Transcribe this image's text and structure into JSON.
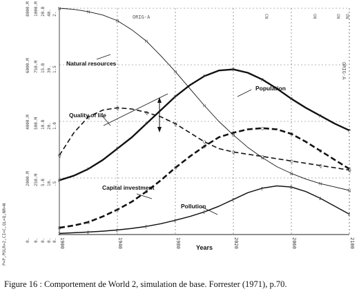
{
  "chart_data": {
    "type": "line",
    "title": "",
    "subtitle": "ORIG-A",
    "right_label": "ORIG-A",
    "top_right_marks": [
      "CN",
      "ON",
      "ON",
      "ON"
    ],
    "xlabel": "Years",
    "ylabel": "P=P,POLR=2,CI=C,QL=Q,NR=N",
    "x_ticks": [
      "1900",
      "1940",
      "1980",
      "2020",
      "2060",
      "2100"
    ],
    "xlim": [
      1900,
      2100
    ],
    "grid": true,
    "legend": "inline labels",
    "y_scale_columns": [
      [
        "8000.M",
        "6000.M",
        "4000.M",
        "2000.M",
        "0."
      ],
      [
        "1000.M",
        "750.M",
        "500.M",
        "250.M",
        "0."
      ],
      [
        "20.B",
        "15.B",
        "10.B",
        "5.B",
        "0."
      ],
      [
        "40.",
        "30.",
        "20.",
        "10.",
        "0."
      ],
      [
        "2.",
        "1.5",
        "1.0",
        ".5",
        "0."
      ]
    ],
    "series": [
      {
        "name": "Natural resources",
        "marker": "N",
        "style": "thin",
        "x": [
          1900,
          1910,
          1920,
          1930,
          1940,
          1950,
          1960,
          1970,
          1980,
          1990,
          2000,
          2010,
          2020,
          2030,
          2040,
          2050,
          2060,
          2070,
          2080,
          2090,
          2100
        ],
        "values": [
          1.0,
          0.995,
          0.985,
          0.97,
          0.945,
          0.905,
          0.855,
          0.79,
          0.72,
          0.645,
          0.57,
          0.5,
          0.44,
          0.385,
          0.34,
          0.3,
          0.27,
          0.245,
          0.225,
          0.21,
          0.195
        ]
      },
      {
        "name": "Population",
        "marker": "P",
        "style": "thick",
        "x": [
          1900,
          1910,
          1920,
          1930,
          1940,
          1950,
          1960,
          1970,
          1980,
          1990,
          2000,
          2010,
          2020,
          2030,
          2040,
          2050,
          2060,
          2070,
          2080,
          2090,
          2100
        ],
        "values": [
          0.24,
          0.26,
          0.29,
          0.33,
          0.38,
          0.43,
          0.49,
          0.55,
          0.61,
          0.66,
          0.7,
          0.725,
          0.73,
          0.715,
          0.685,
          0.645,
          0.6,
          0.56,
          0.525,
          0.49,
          0.46
        ]
      },
      {
        "name": "Quality of life",
        "marker": "Q",
        "style": "dashed",
        "x": [
          1900,
          1910,
          1920,
          1930,
          1940,
          1950,
          1960,
          1970,
          1980,
          1990,
          2000,
          2010,
          2020,
          2030,
          2040,
          2050,
          2060,
          2070,
          2080,
          2090,
          2100
        ],
        "values": [
          0.35,
          0.45,
          0.52,
          0.55,
          0.56,
          0.555,
          0.54,
          0.52,
          0.49,
          0.45,
          0.41,
          0.38,
          0.365,
          0.355,
          0.345,
          0.335,
          0.325,
          0.315,
          0.305,
          0.295,
          0.285
        ]
      },
      {
        "name": "Capital investment",
        "marker": "C",
        "style": "thick dashed",
        "x": [
          1900,
          1910,
          1920,
          1930,
          1940,
          1950,
          1960,
          1970,
          1980,
          1990,
          2000,
          2010,
          2020,
          2030,
          2040,
          2050,
          2060,
          2070,
          2080,
          2090,
          2100
        ],
        "values": [
          0.03,
          0.04,
          0.055,
          0.08,
          0.11,
          0.145,
          0.19,
          0.24,
          0.295,
          0.345,
          0.39,
          0.43,
          0.45,
          0.465,
          0.47,
          0.465,
          0.445,
          0.41,
          0.37,
          0.33,
          0.29
        ]
      },
      {
        "name": "Pollution",
        "marker": "2",
        "style": "solid",
        "x": [
          1900,
          1910,
          1920,
          1930,
          1940,
          1950,
          1960,
          1970,
          1980,
          1990,
          2000,
          2010,
          2020,
          2030,
          2040,
          2050,
          2060,
          2070,
          2080,
          2090,
          2100
        ],
        "values": [
          0.005,
          0.008,
          0.011,
          0.015,
          0.02,
          0.027,
          0.036,
          0.048,
          0.063,
          0.08,
          0.1,
          0.125,
          0.155,
          0.185,
          0.205,
          0.215,
          0.21,
          0.19,
          0.16,
          0.125,
          0.09
        ]
      }
    ]
  },
  "caption": "Figure 16 : Comportement de World 2, simulation de base. Forrester (1971), p.70."
}
